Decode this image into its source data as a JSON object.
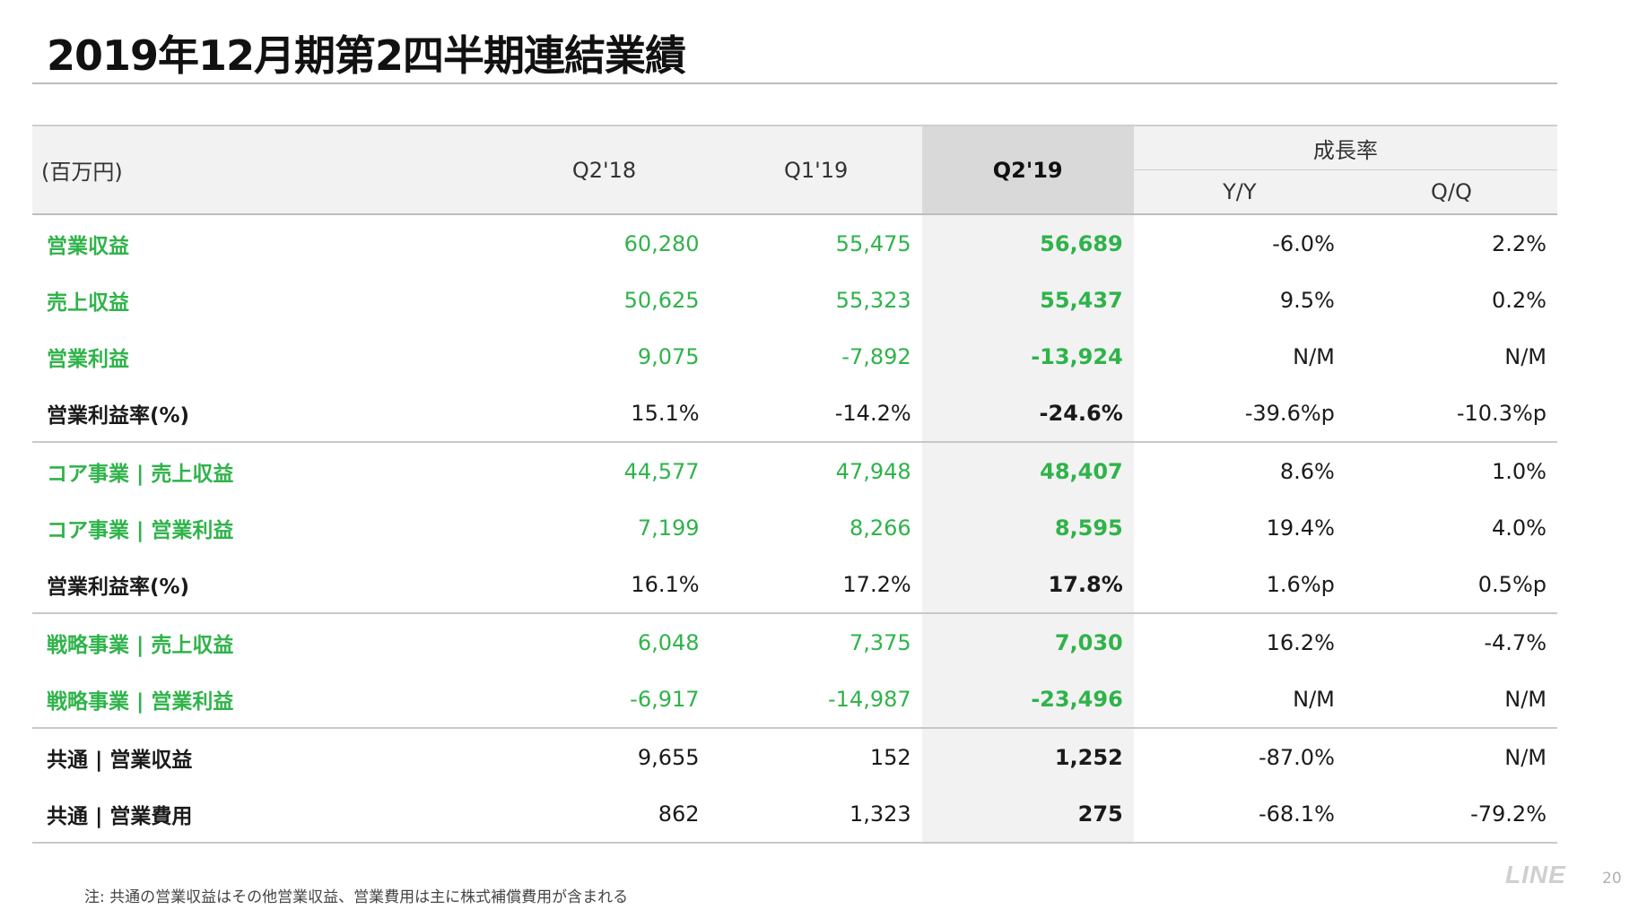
{
  "title": "2019年12月期第2四半期連結業績",
  "table": {
    "unit_label": "(百万円)",
    "period_headers": [
      "Q2'18",
      "Q1'19",
      "Q2'19"
    ],
    "growth_header": "成長率",
    "growth_sub_headers": [
      "Y/Y",
      "Q/Q"
    ],
    "rows": [
      {
        "label": "営業収益",
        "values": [
          "60,280",
          "55,475",
          "56,689"
        ],
        "growth": [
          "-6.0%",
          "2.2%"
        ]
      },
      {
        "label": "売上収益",
        "values": [
          "50,625",
          "55,323",
          "55,437"
        ],
        "growth": [
          "9.5%",
          "0.2%"
        ]
      },
      {
        "label": "営業利益",
        "values": [
          "9,075",
          "-7,892",
          "-13,924"
        ],
        "growth": [
          "N/M",
          "N/M"
        ]
      },
      {
        "label": "営業利益率(%)",
        "values": [
          "15.1%",
          "-14.2%",
          "-24.6%"
        ],
        "growth": [
          "-39.6%p",
          "-10.3%p"
        ]
      },
      {
        "label": "コア事業 | 売上収益",
        "values": [
          "44,577",
          "47,948",
          "48,407"
        ],
        "growth": [
          "8.6%",
          "1.0%"
        ]
      },
      {
        "label": "コア事業 | 営業利益",
        "values": [
          "7,199",
          "8,266",
          "8,595"
        ],
        "growth": [
          "19.4%",
          "4.0%"
        ]
      },
      {
        "label": "営業利益率(%)",
        "values": [
          "16.1%",
          "17.2%",
          "17.8%"
        ],
        "growth": [
          "1.6%p",
          "0.5%p"
        ]
      },
      {
        "label": "戦略事業 | 売上収益",
        "values": [
          "6,048",
          "7,375",
          "7,030"
        ],
        "growth": [
          "16.2%",
          "-4.7%"
        ]
      },
      {
        "label": "戦略事業 | 営業利益",
        "values": [
          "-6,917",
          "-14,987",
          "-23,496"
        ],
        "growth": [
          "N/M",
          "N/M"
        ]
      },
      {
        "label": "共通 | 営業収益",
        "values": [
          "9,655",
          "152",
          "1,252"
        ],
        "growth": [
          "-87.0%",
          "N/M"
        ]
      },
      {
        "label": "共通 | 営業費用",
        "values": [
          "862",
          "1,323",
          "275"
        ],
        "growth": [
          "-68.1%",
          "-79.2%"
        ]
      }
    ]
  },
  "footnote": "注: 共通の営業収益はその他営業収益、営業費用は主に株式補償費用が含まれる",
  "logo_text": "LINE",
  "page_number": "20",
  "colors": {
    "accent_green": "#2fb34a",
    "header_bg": "#f2f2f2",
    "current_period_bg": "#d9d9d9"
  }
}
